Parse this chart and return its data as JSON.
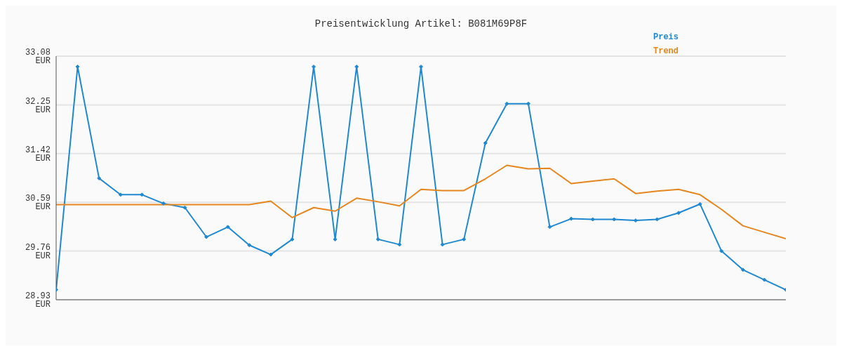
{
  "chart_data": {
    "type": "line",
    "title": "Preisentwicklung Artikel: B081M69P8F",
    "categories": [
      null,
      null,
      null,
      null,
      null,
      null,
      null,
      null,
      null,
      null,
      null,
      null,
      null,
      null,
      null,
      null,
      null,
      null,
      null,
      null,
      null,
      null,
      null,
      null,
      null,
      null,
      null,
      null,
      null,
      null,
      null,
      null,
      null,
      null,
      null
    ],
    "series": [
      {
        "name": "Preis",
        "color": "#1f88d0",
        "marker": "diamond",
        "values": [
          29.1,
          32.9,
          31.0,
          30.72,
          30.72,
          30.57,
          30.5,
          30.0,
          30.17,
          29.86,
          29.7,
          29.96,
          32.9,
          29.96,
          32.9,
          29.96,
          29.87,
          32.9,
          29.87,
          29.96,
          31.6,
          32.27,
          32.27,
          30.17,
          30.31,
          30.3,
          30.3,
          30.28,
          30.3,
          30.41,
          30.56,
          29.76,
          29.44,
          29.27,
          29.1
        ]
      },
      {
        "name": "Trend",
        "color": "#e5861f",
        "marker": "none",
        "values": [
          30.55,
          30.55,
          30.55,
          30.55,
          30.55,
          30.55,
          30.55,
          30.55,
          30.55,
          30.55,
          30.61,
          30.33,
          30.5,
          30.44,
          30.66,
          30.6,
          30.53,
          30.81,
          30.79,
          30.79,
          30.99,
          31.22,
          31.16,
          31.17,
          30.91,
          30.95,
          30.99,
          30.74,
          30.78,
          30.81,
          30.72,
          30.47,
          30.19,
          30.08,
          29.97
        ]
      }
    ],
    "ylim": [
      28.93,
      33.08
    ],
    "yticks": [
      {
        "value": 28.93,
        "label": "28.93 EUR"
      },
      {
        "value": 29.76,
        "label": "29.76 EUR"
      },
      {
        "value": 30.59,
        "label": "30.59 EUR"
      },
      {
        "value": 31.42,
        "label": "31.42 EUR"
      },
      {
        "value": 32.25,
        "label": "32.25 EUR"
      },
      {
        "value": 33.08,
        "label": "33.08 EUR"
      }
    ],
    "grid": "y",
    "legend": "top right",
    "line_style": "solid"
  }
}
